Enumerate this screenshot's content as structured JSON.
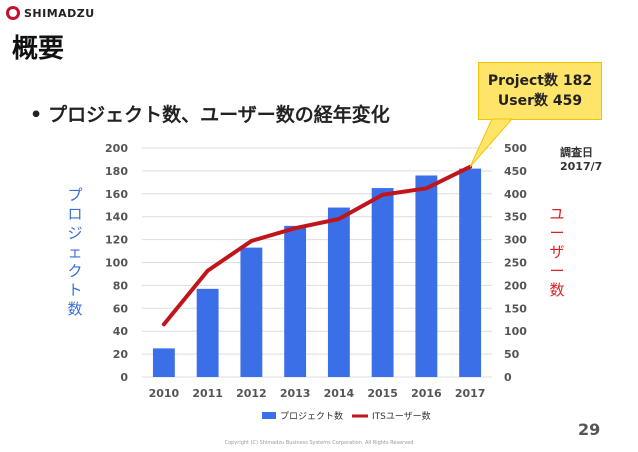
{
  "logo": {
    "text": "SHIMADZU"
  },
  "title": "概要",
  "bullet": "プロジェクト数、ユーザー数の経年変化",
  "callout": {
    "line1": "Project数 182",
    "line2": "User数 459"
  },
  "date_note": "調査日　2017/7",
  "page_number": "29",
  "copyright": "Copyright (C) Shimadzu Business Systems Corporation. All Rights Reserved",
  "colors": {
    "bar": "#3b6fe8",
    "line": "#c0151b",
    "left_axis_label": "#3a6fd8",
    "right_axis_label": "#e02020"
  },
  "chart_data": {
    "type": "bar",
    "categories": [
      "2010",
      "2011",
      "2012",
      "2013",
      "2014",
      "2015",
      "2016",
      "2017"
    ],
    "series": [
      {
        "name": "プロジェクト数",
        "type": "bar",
        "axis": "left",
        "values": [
          25,
          77,
          113,
          132,
          148,
          165,
          176,
          182
        ]
      },
      {
        "name": "ITSユーザー数",
        "type": "line",
        "axis": "right",
        "values": [
          115,
          232,
          297,
          325,
          345,
          398,
          412,
          459
        ]
      }
    ],
    "ylabel": "プロジェクト数",
    "y2label": "ユーザー数",
    "ylim": [
      0,
      200
    ],
    "y2lim": [
      0,
      500
    ],
    "yticks": [
      0,
      20,
      40,
      60,
      80,
      100,
      120,
      140,
      160,
      180,
      200
    ],
    "y2ticks": [
      0,
      50,
      100,
      150,
      200,
      250,
      300,
      350,
      400,
      450,
      500
    ],
    "grid": true,
    "legend_position": "bottom"
  }
}
